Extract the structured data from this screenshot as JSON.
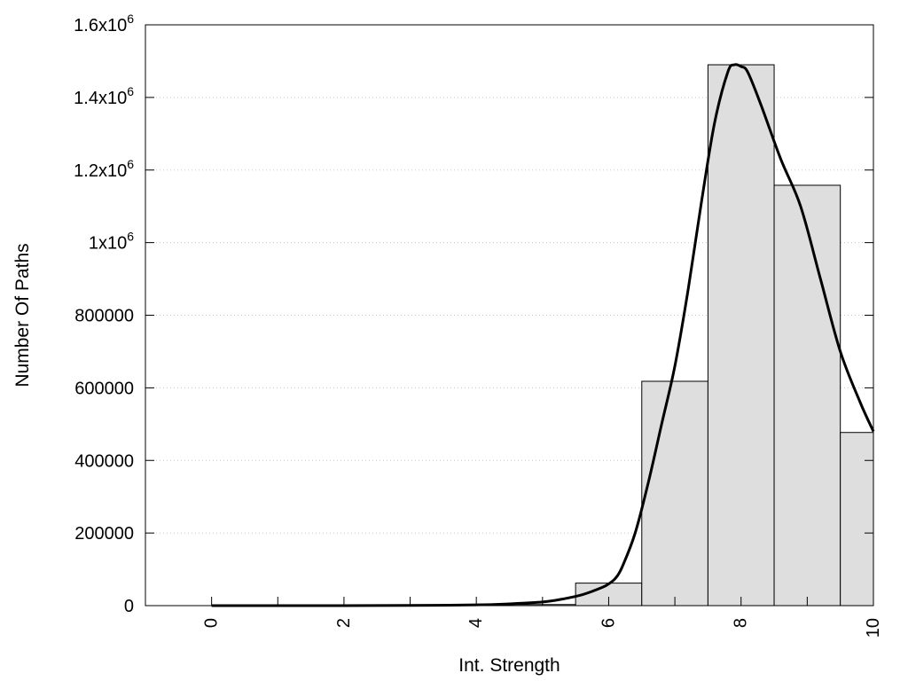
{
  "chart_data": {
    "type": "bar",
    "title": "",
    "xlabel": "Int. Strength",
    "ylabel": "Number Of Paths",
    "xlim": [
      -1,
      10
    ],
    "ylim": [
      0,
      1600000
    ],
    "grid": "horizontal dotted",
    "legend": "none",
    "x_ticks": [
      {
        "value": 0,
        "label": "0"
      },
      {
        "value": 2,
        "label": "2"
      },
      {
        "value": 4,
        "label": "4"
      },
      {
        "value": 6,
        "label": "6"
      },
      {
        "value": 8,
        "label": "8"
      },
      {
        "value": 10,
        "label": "10"
      }
    ],
    "y_ticks": [
      {
        "value": 0,
        "label": "0"
      },
      {
        "value": 200000,
        "label": "200000"
      },
      {
        "value": 400000,
        "label": "400000"
      },
      {
        "value": 600000,
        "label": "600000"
      },
      {
        "value": 800000,
        "label": "800000"
      },
      {
        "value": 1000000,
        "label": "1x10",
        "sup": "6"
      },
      {
        "value": 1200000,
        "label": "1.2x10",
        "sup": "6"
      },
      {
        "value": 1400000,
        "label": "1.4x10",
        "sup": "6"
      },
      {
        "value": 1600000,
        "label": "1.6x10",
        "sup": "6"
      }
    ],
    "bars": {
      "bin_width": 1,
      "x": [
        0,
        1,
        2,
        3,
        4,
        5,
        6,
        7,
        8,
        9,
        10
      ],
      "values": [
        0,
        0,
        0,
        0,
        1000,
        3000,
        62000,
        618000,
        1490000,
        1158000,
        477000
      ]
    },
    "series": [
      {
        "type": "line",
        "x": [
          0,
          1,
          2,
          3,
          4,
          4.5,
          5,
          5.3,
          5.6,
          5.9,
          6.0,
          6.1,
          6.2,
          6.4,
          6.6,
          6.8,
          7.0,
          7.2,
          7.4,
          7.6,
          7.8,
          7.9,
          8.0,
          8.1,
          8.3,
          8.6,
          8.9,
          9.2,
          9.5,
          9.8,
          10.0
        ],
        "values": [
          0,
          0,
          0,
          500,
          2000,
          5000,
          10000,
          18000,
          30000,
          50000,
          60000,
          75000,
          105000,
          200000,
          340000,
          500000,
          660000,
          870000,
          1110000,
          1330000,
          1470000,
          1490000,
          1485000,
          1470000,
          1380000,
          1230000,
          1100000,
          900000,
          700000,
          560000,
          480000
        ]
      }
    ],
    "colors": {
      "bar_fill": "#dedede",
      "bar_stroke": "#000000",
      "line": "#000000",
      "grid": "#c8c8c8"
    }
  }
}
